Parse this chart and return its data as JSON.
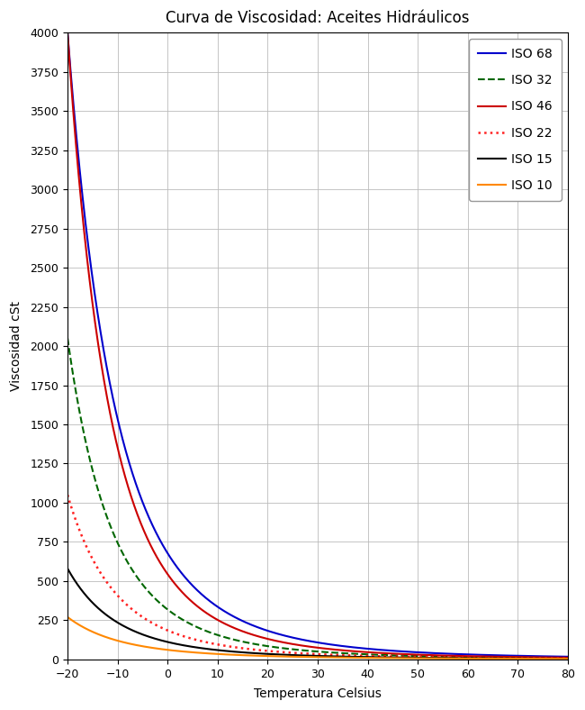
{
  "title": "Curva de Viscosidad: Aceites Hidráulicos",
  "xlabel": "Temperatura Celsius",
  "ylabel": "Viscosidad cSt",
  "xlim": [
    -20,
    80
  ],
  "ylim": [
    0,
    4000
  ],
  "xticks": [
    -20,
    -10,
    0,
    10,
    20,
    30,
    40,
    50,
    60,
    70,
    80
  ],
  "yticks": [
    0,
    250,
    500,
    750,
    1000,
    1250,
    1500,
    1750,
    2000,
    2250,
    2500,
    2750,
    3000,
    3250,
    3500,
    3750,
    4000
  ],
  "series": [
    {
      "label": "ISO 68",
      "color": "#0000cc",
      "linestyle": "solid",
      "linewidth": 1.5,
      "nu_ref": [
        -20,
        4000
      ],
      "nu40": 68,
      "nu100": 8.8
    },
    {
      "label": "ISO 32",
      "color": "#006600",
      "linestyle": "dashed",
      "linewidth": 1.5,
      "nu40": 32,
      "nu100": 5.4,
      "nu_ref": [
        -20,
        2050
      ]
    },
    {
      "label": "ISO 46",
      "color": "#cc0000",
      "linestyle": "solid",
      "linewidth": 1.5,
      "nu40": 46,
      "nu100": 6.8,
      "nu_ref": [
        -20,
        4000
      ]
    },
    {
      "label": "ISO 22",
      "color": "#ff2222",
      "linestyle": "dotted",
      "linewidth": 1.8,
      "nu40": 22,
      "nu100": 4.2,
      "nu_ref": [
        -20,
        1050
      ]
    },
    {
      "label": "ISO 15",
      "color": "#000000",
      "linestyle": "solid",
      "linewidth": 1.5,
      "nu40": 15,
      "nu100": 3.3,
      "nu_ref": [
        -20,
        580
      ]
    },
    {
      "label": "ISO 10",
      "color": "#ff8800",
      "linestyle": "solid",
      "linewidth": 1.5,
      "nu40": 10,
      "nu100": 2.5,
      "nu_ref": [
        -20,
        270
      ]
    }
  ],
  "background_color": "#ffffff",
  "grid_color": "#bbbbbb",
  "legend_loc": "upper right",
  "title_fontsize": 12,
  "label_fontsize": 10,
  "tick_fontsize": 9
}
